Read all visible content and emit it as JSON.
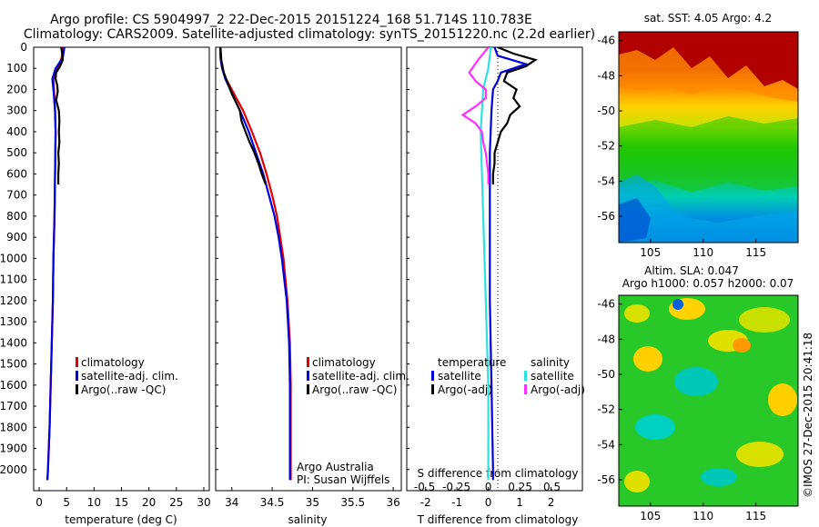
{
  "header": {
    "line1": "Argo profile: CS 5904997_2 22-Dec-2015 20151224_168 51.714S 110.783E",
    "line2": "Climatology: CARS2009. Satellite-adjusted climatology: synTS_20151220.nc (2.2d earlier)"
  },
  "colors": {
    "climatology": "#e00000",
    "satellite": "#0000dd",
    "argo": "#000000",
    "salinity_satellite": "#30e0e0",
    "salinity_argo": "#ff30ff"
  },
  "chart_data": [
    {
      "type": "line",
      "name": "temperature",
      "xlabel": "temperature (deg C)",
      "ylabel": "",
      "xlim": [
        -1,
        31
      ],
      "ylim": [
        2100,
        0
      ],
      "xticks": [
        "0",
        "5",
        "10",
        "15",
        "20",
        "25",
        "30"
      ],
      "yticks": [
        "0",
        "100",
        "200",
        "300",
        "400",
        "500",
        "600",
        "700",
        "800",
        "900",
        "1000",
        "1100",
        "1200",
        "1300",
        "1400",
        "1500",
        "1600",
        "1700",
        "1800",
        "1900",
        "2000"
      ],
      "legend": [
        "climatology",
        "satellite-adj. clim.",
        "Argo(..raw -QC)"
      ],
      "series": [
        {
          "name": "climatology",
          "depth": [
            0,
            50,
            100,
            150,
            200,
            300,
            400,
            600,
            800,
            1000,
            1200,
            1400,
            1600,
            1800,
            2000,
            2050
          ],
          "values": [
            4.3,
            4.1,
            3.3,
            2.6,
            2.7,
            2.9,
            3.0,
            2.9,
            2.8,
            2.6,
            2.5,
            2.3,
            2.1,
            1.9,
            1.6,
            1.5
          ]
        },
        {
          "name": "satellite-adj. clim.",
          "depth": [
            0,
            50,
            100,
            150,
            200,
            300,
            400,
            600,
            800,
            1000,
            1200,
            1400,
            1600,
            1800,
            2000,
            2050
          ],
          "values": [
            4.6,
            4.3,
            3.0,
            2.4,
            2.6,
            2.9,
            3.0,
            2.9,
            2.8,
            2.6,
            2.5,
            2.3,
            2.1,
            1.9,
            1.6,
            1.5
          ]
        },
        {
          "name": "Argo(..raw -QC)",
          "depth": [
            0,
            30,
            60,
            90,
            120,
            150,
            180,
            210,
            250,
            300,
            350,
            400,
            450,
            500,
            550,
            600,
            650
          ],
          "values": [
            4.0,
            4.2,
            4.3,
            3.8,
            3.1,
            3.0,
            3.3,
            3.4,
            3.1,
            3.6,
            3.7,
            3.6,
            3.7,
            3.5,
            3.6,
            3.5,
            3.5
          ]
        }
      ]
    },
    {
      "type": "line",
      "name": "salinity",
      "xlabel": "salinity",
      "xlim": [
        33.8,
        36.1
      ],
      "ylim": [
        2100,
        0
      ],
      "xticks": [
        "34",
        "34.5",
        "35",
        "35.5",
        "36"
      ],
      "legend": [
        "climatology",
        "satellite-adj. clim.",
        "Argo(..raw -QC)"
      ],
      "annotation": [
        "Argo Australia",
        "PI: Susan Wijffels"
      ],
      "series": [
        {
          "name": "climatology",
          "depth": [
            0,
            50,
            100,
            150,
            200,
            250,
            300,
            400,
            500,
            600,
            700,
            800,
            900,
            1000,
            1200,
            1400,
            1600,
            1800,
            2000,
            2050
          ],
          "values": [
            33.86,
            33.86,
            33.88,
            33.93,
            34.0,
            34.07,
            34.14,
            34.25,
            34.35,
            34.43,
            34.5,
            34.56,
            34.6,
            34.64,
            34.69,
            34.72,
            34.73,
            34.73,
            34.73,
            34.73
          ]
        },
        {
          "name": "satellite-adj. clim.",
          "depth": [
            0,
            50,
            100,
            150,
            200,
            250,
            300,
            400,
            500,
            600,
            700,
            800,
            900,
            1000,
            1200,
            1400,
            1600,
            1800,
            2000,
            2050
          ],
          "values": [
            33.86,
            33.86,
            33.88,
            33.92,
            33.98,
            34.04,
            34.1,
            34.21,
            34.3,
            34.39,
            34.46,
            34.53,
            34.58,
            34.62,
            34.68,
            34.71,
            34.72,
            34.72,
            34.72,
            34.72
          ]
        },
        {
          "name": "Argo(..raw -QC)",
          "depth": [
            0,
            60,
            120,
            180,
            220,
            260,
            300,
            350,
            400,
            450,
            500,
            550,
            600,
            650
          ],
          "values": [
            33.86,
            33.87,
            33.9,
            33.96,
            34.0,
            34.05,
            34.1,
            34.12,
            34.17,
            34.22,
            34.28,
            34.33,
            34.37,
            34.42
          ]
        }
      ]
    },
    {
      "type": "line",
      "name": "differences",
      "xlabel": "T difference from climatology",
      "xlabel_top": "S difference from climatology",
      "xlim": [
        -2.6,
        3.0
      ],
      "ylim": [
        2100,
        0
      ],
      "xticks": [
        "-2",
        "-1",
        "0",
        "1",
        "2"
      ],
      "xticks_top": [
        "-0.5",
        "-0.25",
        "0",
        "0.25",
        "0.5"
      ],
      "legend_temperature_title": "temperature",
      "legend_salinity_title": "salinity",
      "legend": [
        "satellite",
        "Argo(-adj)",
        "satellite",
        "Argo(-adj)"
      ],
      "series": [
        {
          "name": "T satellite",
          "depth": [
            0,
            40,
            80,
            120,
            160,
            200,
            300,
            500,
            800,
            1200,
            1600,
            2000,
            2050
          ],
          "values": [
            0.2,
            0.3,
            1.2,
            0.4,
            0.3,
            0.15,
            0.1,
            0.05,
            0.05,
            0.05,
            0.1,
            0.15,
            0.15
          ]
        },
        {
          "name": "T Argo(-adj)",
          "depth": [
            0,
            30,
            60,
            90,
            120,
            160,
            200,
            240,
            280,
            320,
            360,
            400,
            450,
            500,
            550,
            600,
            650
          ],
          "values": [
            0.3,
            0.8,
            1.5,
            1.2,
            0.6,
            0.5,
            0.9,
            0.8,
            1.0,
            0.7,
            0.6,
            0.4,
            0.3,
            0.2,
            0.2,
            0.15,
            0.15
          ]
        },
        {
          "name": "S satellite",
          "depth": [
            0,
            100,
            200,
            400,
            600,
            800,
            1200,
            1600,
            2000,
            2050
          ],
          "values": [
            0.02,
            0.0,
            -0.04,
            -0.06,
            -0.05,
            -0.04,
            -0.02,
            0.0,
            0.0,
            0.0
          ]
        },
        {
          "name": "S Argo(-adj)",
          "depth": [
            0,
            60,
            120,
            160,
            200,
            240,
            280,
            320,
            360,
            400,
            450,
            500,
            550,
            600,
            650
          ],
          "values": [
            0.0,
            -0.08,
            -0.15,
            -0.1,
            -0.02,
            -0.02,
            -0.1,
            -0.2,
            -0.1,
            -0.05,
            -0.04,
            -0.02,
            -0.01,
            0.0,
            0.0
          ]
        }
      ]
    },
    {
      "type": "heatmap",
      "name": "sst-map",
      "title": "sat. SST: 4.05 Argo: 4.2",
      "xticks": [
        "105",
        "110",
        "115"
      ],
      "yticks": [
        "-46",
        "-48",
        "-50",
        "-52",
        "-54",
        "-56"
      ],
      "xlim": [
        102,
        119
      ],
      "ylim": [
        -57.5,
        -45.5
      ]
    },
    {
      "type": "heatmap",
      "name": "sla-map",
      "title_line1": "Altim. SLA: 0.047",
      "title_line2": "Argo h1000: 0.057 h2000: 0.07",
      "xticks": [
        "105",
        "110",
        "115"
      ],
      "yticks": [
        "-46",
        "-48",
        "-50",
        "-52",
        "-54",
        "-56"
      ],
      "xlim": [
        102,
        119
      ],
      "ylim": [
        -57.5,
        -45.5
      ]
    }
  ],
  "footer": {
    "stamp": "©IMOS 27-Dec-2015 20:41:18"
  }
}
